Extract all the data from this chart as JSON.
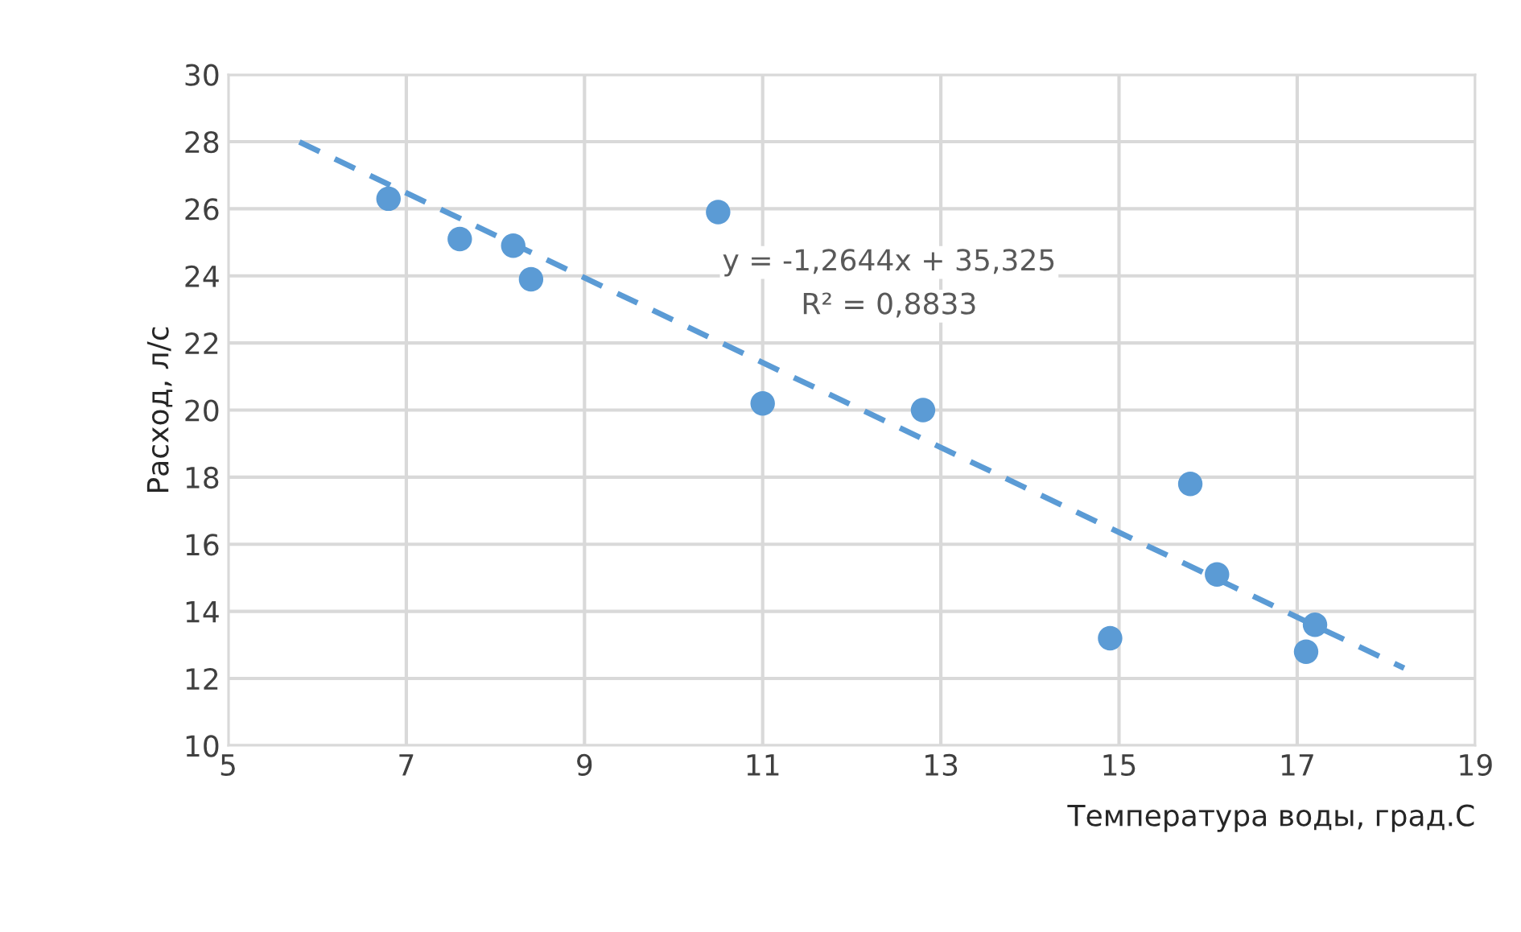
{
  "chart_data": {
    "type": "scatter",
    "xlabel": "Температура воды, град.С",
    "ylabel": "Расход, л/с",
    "xlim": [
      5,
      19
    ],
    "xticks": [
      5,
      7,
      9,
      11,
      13,
      15,
      17,
      19
    ],
    "ylim": [
      10,
      30
    ],
    "yticks": [
      10,
      12,
      14,
      16,
      18,
      20,
      22,
      24,
      26,
      28,
      30
    ],
    "grid": true,
    "legend": false,
    "marker": "circle",
    "series": [
      {
        "color": "#5b9bd5",
        "x": [
          6.8,
          7.6,
          8.2,
          8.4,
          10.5,
          11.0,
          12.8,
          14.9,
          15.8,
          16.1,
          17.1,
          17.2
        ],
        "values": [
          26.3,
          25.1,
          24.9,
          23.9,
          25.9,
          20.2,
          20.0,
          13.2,
          17.8,
          15.1,
          12.8,
          13.6
        ]
      },
      {
        "type": "line",
        "color": "#5b9bd5",
        "line_style": "dashed",
        "marker": "none",
        "x": [
          5.8,
          18.2
        ],
        "values": [
          27.99,
          12.31
        ]
      }
    ],
    "annotations": [
      "y = -1,2644x + 35,325",
      "R² = 0,8833"
    ]
  }
}
